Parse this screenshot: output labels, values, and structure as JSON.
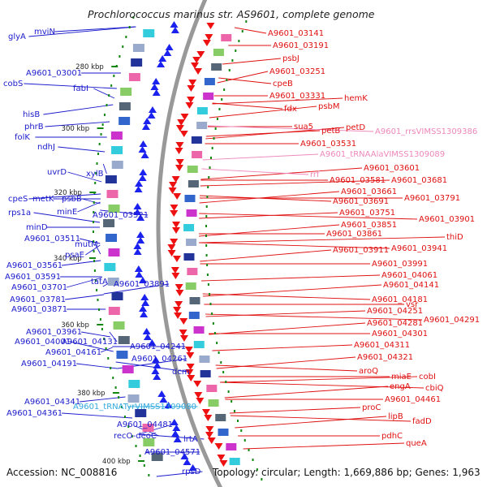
{
  "title": "Prochlorococcus marinus str. AS9601, complete genome",
  "footer": {
    "accession": "Accession: NC_008816",
    "summary": "Topology: circular; Length: 1,669,886 bp; Genes: 1,963"
  },
  "colors": {
    "left_label": "#1a1acc",
    "right_label": "#e01010",
    "pink_label": "#ee88bb",
    "cyan_label": "#33aadd",
    "backbone": "#999999",
    "tick_green": "#118811"
  },
  "ticks": [
    "280 kbp",
    "300 kbp",
    "320 kbp",
    "340 kbp",
    "360 kbp",
    "380 kbp",
    "400 kbp"
  ],
  "left_labels": [
    "glyA",
    "mviN",
    "A9601_03001",
    "cobS",
    "fabI",
    "hisB",
    "phrB",
    "folK",
    "ndhJ",
    "uvrD",
    "xylB",
    "cpeS",
    "metK",
    "psbB",
    "rps1a",
    "minE",
    "A9601_03521",
    "minD",
    "A9601_03511",
    "mutM",
    "psaE",
    "A9601_03561",
    "A9601_03591",
    "tatA",
    "A9601_03891",
    "A9601_03701",
    "A9601_03781",
    "A9601_03871",
    "A9601_03961",
    "A9601_04001",
    "A9601_04131",
    "A9601_04161",
    "A9601_04241",
    "A9601_04191",
    "A9601_04261",
    "dcm",
    "A9601_04341",
    "A9601_tRNATyrVIMSS1309080",
    "A9601_04361",
    "A9601_04481",
    "recO-deoC",
    "lrtA",
    "A9601_04571",
    "rpsD"
  ],
  "right_labels": [
    "A9601_03141",
    "A9601_03191",
    "psbJ",
    "A9601_03251",
    "cpeB",
    "A9601_03331",
    "hemK",
    "psbM",
    "fdx",
    "sua5",
    "petB",
    "petD",
    "A9601_rrsVIMSS1309386",
    "A9601_03531",
    "A9601_tRNAAlaVIMSS1309089",
    "A9601_03601",
    "rrf",
    "A9601_03581",
    "A9601_03681",
    "A9601_03661",
    "A9601_03691",
    "A9601_03791",
    "A9601_03751",
    "A9601_03851",
    "A9601_03901",
    "A9601_03861",
    "thiD",
    "A9601_03911",
    "A9601_03941",
    "A9601_03991",
    "A9601_04061",
    "A9601_04141",
    "A9601_04181",
    "vsr",
    "A9601_04251",
    "A9601_04281",
    "A9601_04291",
    "A9601_04301",
    "A9601_04311",
    "A9601_04321",
    "aroQ",
    "miaE",
    "cobI",
    "engA",
    "cbiQ",
    "A9601_04461",
    "proC",
    "lipB",
    "fadD",
    "pdhC",
    "queA"
  ]
}
